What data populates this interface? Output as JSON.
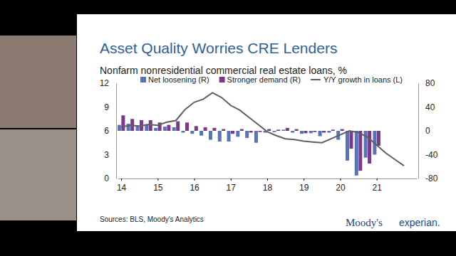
{
  "chart_data": {
    "type": "bar",
    "title": "Asset Quality Worries CRE Lenders",
    "subtitle": "Nonfarm nonresidential commercial real estate loans, %",
    "source": "Sources: BLS, Moody's Analytics",
    "logos": [
      "Moody's",
      "experian."
    ],
    "legend": "top",
    "x": [
      2014,
      2014.25,
      2014.5,
      2014.75,
      2015,
      2015.25,
      2015.5,
      2015.75,
      2016,
      2016.25,
      2016.5,
      2016.75,
      2017,
      2017.25,
      2017.5,
      2017.75,
      2018,
      2018.25,
      2018.5,
      2018.75,
      2019,
      2019.25,
      2019.5,
      2019.75,
      2020,
      2020.25,
      2020.5,
      2020.75,
      2021,
      2021.25,
      2021.5,
      2021.75
    ],
    "xlim": [
      2013.9,
      2022.1
    ],
    "xticks": [
      {
        "value": 2014,
        "label": "14"
      },
      {
        "value": 2015,
        "label": "15"
      },
      {
        "value": 2016,
        "label": "16"
      },
      {
        "value": 2017,
        "label": "17"
      },
      {
        "value": 2018,
        "label": "18"
      },
      {
        "value": 2019,
        "label": "19"
      },
      {
        "value": 2020,
        "label": "20"
      },
      {
        "value": 2021,
        "label": "21"
      }
    ],
    "ylim": [
      0,
      12
    ],
    "yticks": [
      0,
      3,
      6,
      9,
      12
    ],
    "y2lim": [
      -80,
      80
    ],
    "y2ticks": [
      -80,
      -40,
      0,
      40,
      80
    ],
    "series": [
      {
        "name": "Net loosening (R)",
        "type": "bar",
        "axis": "y2",
        "color": "#5774b8",
        "values": [
          10,
          12,
          9,
          11,
          5,
          7,
          6,
          -3,
          -5,
          -8,
          -15,
          -18,
          -18,
          -10,
          -12,
          -20,
          -3,
          -2,
          2,
          -3,
          -5,
          -4,
          -9,
          -3,
          -15,
          -50,
          -75,
          -45,
          -40,
          null,
          null,
          null
        ]
      },
      {
        "name": "Stronger demand (R)",
        "type": "bar",
        "axis": "y2",
        "color": "#7a3a8c",
        "values": [
          26,
          20,
          18,
          18,
          14,
          10,
          16,
          14,
          8,
          6,
          5,
          3,
          -5,
          3,
          -3,
          -2,
          3,
          2,
          5,
          3,
          -4,
          -2,
          -3,
          2,
          3,
          -30,
          -67,
          -55,
          -25,
          null,
          null,
          null
        ]
      },
      {
        "name": "Y/Y growth in loans (L)",
        "type": "line",
        "color": "#5f5f5f",
        "values": [
          6.5,
          6.7,
          6.6,
          6.8,
          6.7,
          7.1,
          7.3,
          8.7,
          9.6,
          10,
          10.8,
          10.2,
          9.2,
          8.6,
          7.7,
          6.8,
          5.9,
          5.4,
          5.0,
          4.9,
          4.7,
          4.6,
          4.5,
          5.0,
          5.5,
          6.0,
          5.8,
          5.2,
          4.2,
          3.2,
          2.4,
          1.6
        ]
      }
    ]
  }
}
